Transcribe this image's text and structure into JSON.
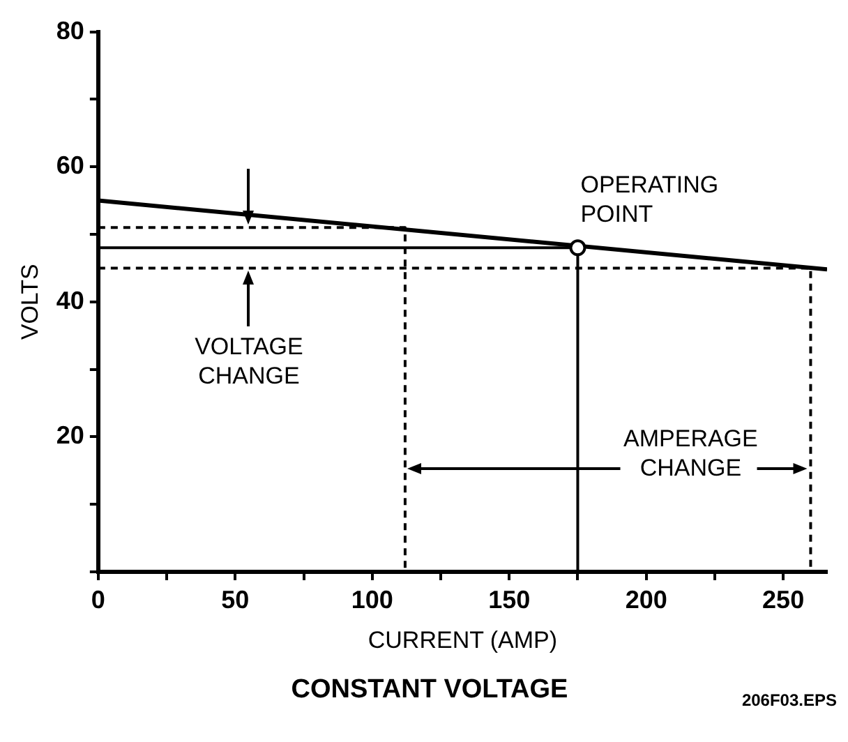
{
  "chart_data": {
    "type": "line",
    "title": "CONSTANT VOLTAGE",
    "xlabel": "CURRENT (AMP)",
    "ylabel": "VOLTS",
    "xlim": [
      0,
      266
    ],
    "ylim": [
      0,
      80
    ],
    "xticks": [
      0,
      {
        "value": 25,
        "label": null
      },
      50,
      {
        "value": 75,
        "label": null
      },
      100,
      {
        "value": 125,
        "label": null
      },
      150,
      {
        "value": 175,
        "label": null
      },
      200,
      {
        "value": 225,
        "label": null
      },
      250
    ],
    "yticks": [
      {
        "value": 0,
        "label": null
      },
      {
        "value": 10,
        "label": null
      },
      20,
      {
        "value": 30,
        "label": null
      },
      40,
      {
        "value": 50,
        "label": null
      },
      60,
      {
        "value": 70,
        "label": null
      },
      80
    ],
    "series": [
      {
        "x": [
          0,
          266
        ],
        "values": [
          55,
          44.8
        ],
        "color": "#000000",
        "line_style": "solid",
        "marker": "none"
      },
      {
        "x": [
          0,
          175,
          175
        ],
        "values": [
          48,
          48,
          0
        ],
        "color": "#000000",
        "line_style": "solid",
        "marker": "none"
      },
      {
        "x": [
          0,
          112,
          112
        ],
        "values": [
          51,
          51,
          0
        ],
        "color": "#000000",
        "line_style": "dashed",
        "marker": "none"
      },
      {
        "x": [
          0,
          260,
          260
        ],
        "values": [
          45,
          45,
          0
        ],
        "color": "#000000",
        "line_style": "dashed",
        "marker": "none"
      },
      {
        "type": "scatter",
        "x": [
          175
        ],
        "values": [
          48
        ],
        "color": "#000000",
        "marker": "circle"
      }
    ],
    "annotations": [
      {
        "text": "OPERATING POINT",
        "x": 175,
        "y": 48
      },
      {
        "text": "VOLTAGE CHANGE",
        "x": 55,
        "y": 45
      },
      "AMPERAGE CHANGE",
      "206F03.EPS"
    ]
  }
}
